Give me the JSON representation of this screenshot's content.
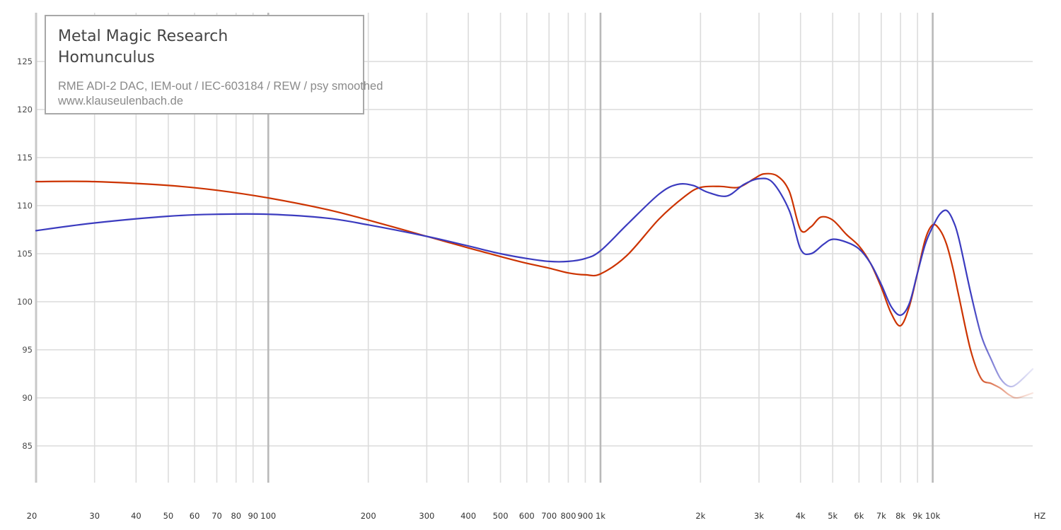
{
  "legend": {
    "title_line1": "Metal Magic Research",
    "title_line2": "Homunculus",
    "subtitle_line1": "RME ADI-2 DAC, IEM-out / IEC-603184 / REW / psy smoothed",
    "subtitle_line2": "www.klauseulenbach.de"
  },
  "chart_data": {
    "type": "line",
    "title": "Metal Magic Research Homunculus",
    "xlabel": "HZ",
    "ylabel": "",
    "x_scale": "log",
    "xlim": [
      20,
      20000
    ],
    "ylim": [
      81,
      128.5
    ],
    "grid": true,
    "legend_position": "top-left",
    "y_ticks": [
      85,
      90,
      95,
      100,
      105,
      110,
      115,
      120,
      125
    ],
    "x_ticks": [
      {
        "value": 20,
        "label": "20"
      },
      {
        "value": 30,
        "label": "30"
      },
      {
        "value": 40,
        "label": "40"
      },
      {
        "value": 50,
        "label": "50"
      },
      {
        "value": 60,
        "label": "60"
      },
      {
        "value": 70,
        "label": "70"
      },
      {
        "value": 80,
        "label": "80"
      },
      {
        "value": 90,
        "label": "90"
      },
      {
        "value": 100,
        "label": "100"
      },
      {
        "value": 200,
        "label": "200"
      },
      {
        "value": 300,
        "label": "300"
      },
      {
        "value": 400,
        "label": "400"
      },
      {
        "value": 500,
        "label": "500"
      },
      {
        "value": 600,
        "label": "600"
      },
      {
        "value": 700,
        "label": "700"
      },
      {
        "value": 800,
        "label": "800"
      },
      {
        "value": 900,
        "label": "900"
      },
      {
        "value": 1000,
        "label": "1k"
      },
      {
        "value": 2000,
        "label": "2k"
      },
      {
        "value": 3000,
        "label": "3k"
      },
      {
        "value": 4000,
        "label": "4k"
      },
      {
        "value": 5000,
        "label": "5k"
      },
      {
        "value": 6000,
        "label": "6k"
      },
      {
        "value": 7000,
        "label": "7k"
      },
      {
        "value": 8000,
        "label": "8k"
      },
      {
        "value": 9000,
        "label": "9k"
      },
      {
        "value": 10000,
        "label": "10k"
      },
      {
        "value": 20000,
        "label": "HZ"
      }
    ],
    "colors": {
      "series_red": "#cc3300",
      "series_blue": "#3b3bbf",
      "grid": "#dcdcdc"
    },
    "series": [
      {
        "color": "#cc3300",
        "x": [
          20,
          30,
          50,
          70,
          100,
          150,
          200,
          300,
          400,
          500,
          600,
          700,
          800,
          900,
          1000,
          1200,
          1500,
          1800,
          2000,
          2300,
          2600,
          2900,
          3100,
          3400,
          3700,
          4000,
          4300,
          4600,
          5000,
          5500,
          6000,
          6500,
          7000,
          7500,
          8000,
          8500,
          9000,
          9500,
          10000,
          10500,
          11000,
          11500,
          12000,
          13000,
          14000,
          15000,
          16000,
          17000,
          18000,
          20000
        ],
        "y": [
          112.5,
          112.5,
          112.1,
          111.6,
          110.8,
          109.6,
          108.5,
          106.8,
          105.6,
          104.7,
          104.0,
          103.5,
          103.0,
          102.8,
          102.9,
          104.8,
          108.6,
          111.0,
          111.9,
          112.0,
          111.9,
          112.8,
          113.3,
          113.1,
          111.5,
          107.5,
          107.8,
          108.8,
          108.5,
          107.0,
          105.8,
          104.0,
          101.5,
          98.8,
          97.5,
          99.5,
          103.0,
          106.5,
          108.0,
          107.5,
          106.0,
          103.5,
          100.5,
          95.0,
          92.0,
          91.5,
          91.0,
          90.3,
          90.0,
          90.5
        ]
      },
      {
        "color": "#3b3bbf",
        "x": [
          20,
          30,
          50,
          70,
          100,
          150,
          200,
          300,
          400,
          500,
          600,
          700,
          800,
          900,
          1000,
          1200,
          1500,
          1700,
          1900,
          2100,
          2400,
          2700,
          3000,
          3300,
          3700,
          4000,
          4300,
          4700,
          5000,
          5500,
          6000,
          6500,
          7000,
          7500,
          8000,
          8500,
          9000,
          9500,
          10000,
          10500,
          11000,
          11500,
          12000,
          13000,
          14000,
          15000,
          16000,
          17000,
          18000,
          20000
        ],
        "y": [
          107.4,
          108.2,
          108.9,
          109.1,
          109.1,
          108.7,
          108.0,
          106.8,
          105.8,
          105.0,
          104.5,
          104.2,
          104.2,
          104.5,
          105.3,
          108.0,
          111.2,
          112.2,
          112.1,
          111.4,
          111.0,
          112.2,
          112.8,
          112.4,
          109.5,
          105.5,
          105.0,
          106.0,
          106.5,
          106.2,
          105.5,
          104.0,
          101.8,
          99.5,
          98.6,
          99.8,
          103.0,
          106.0,
          107.8,
          109.1,
          109.5,
          108.5,
          106.5,
          101.0,
          96.5,
          94.0,
          92.0,
          91.2,
          91.5,
          93.0
        ]
      }
    ]
  }
}
